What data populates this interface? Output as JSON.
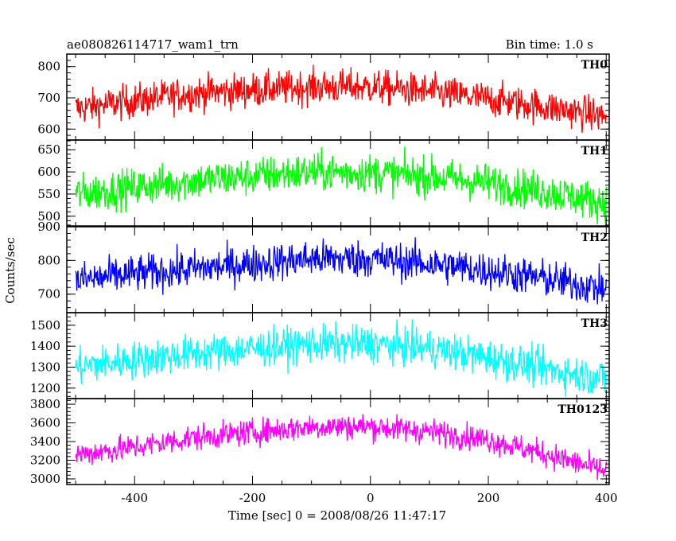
{
  "header": {
    "title": "ae080826114717_wam1_trn",
    "bin_time": "Bin time: 1.0 s"
  },
  "chart_data": {
    "type": "line",
    "xlabel": "Time [sec] 0 = 2008/08/26 11:47:17",
    "ylabel": "Counts/sec",
    "xlim": [
      -515,
      405
    ],
    "x_ticks": [
      -400,
      -200,
      0,
      200,
      400
    ],
    "x_step": 1,
    "panels": [
      {
        "name": "TH0",
        "color": "#ff0000",
        "ylim": [
          565,
          840
        ],
        "y_ticks": [
          600,
          700,
          800
        ],
        "x_range": [
          -500,
          400
        ],
        "trend": [
          [
            -500,
            665
          ],
          [
            -400,
            690
          ],
          [
            -300,
            715
          ],
          [
            -100,
            735
          ],
          [
            0,
            735
          ],
          [
            100,
            720
          ],
          [
            200,
            695
          ],
          [
            300,
            670
          ],
          [
            400,
            640
          ]
        ],
        "noise": 28
      },
      {
        "name": "TH1",
        "color": "#00ff00",
        "ylim": [
          478,
          672
        ],
        "y_ticks": [
          500,
          550,
          600,
          650
        ],
        "x_range": [
          -500,
          400
        ],
        "trend": [
          [
            -500,
            550
          ],
          [
            -400,
            565
          ],
          [
            -300,
            580
          ],
          [
            -100,
            600
          ],
          [
            0,
            598
          ],
          [
            100,
            590
          ],
          [
            200,
            575
          ],
          [
            300,
            555
          ],
          [
            400,
            530
          ]
        ],
        "noise": 22
      },
      {
        "name": "TH2",
        "color": "#0000ff",
        "ylim": [
          645,
          900
        ],
        "y_ticks": [
          700,
          800,
          900
        ],
        "x_range": [
          -500,
          400
        ],
        "trend": [
          [
            -500,
            740
          ],
          [
            -400,
            760
          ],
          [
            -300,
            775
          ],
          [
            -100,
            805
          ],
          [
            0,
            805
          ],
          [
            100,
            790
          ],
          [
            200,
            770
          ],
          [
            300,
            745
          ],
          [
            400,
            715
          ]
        ],
        "noise": 28
      },
      {
        "name": "TH3",
        "color": "#00ffff",
        "ylim": [
          1150,
          1560
        ],
        "y_ticks": [
          1200,
          1300,
          1400,
          1500
        ],
        "x_range": [
          -500,
          400
        ],
        "trend": [
          [
            -500,
            1300
          ],
          [
            -400,
            1335
          ],
          [
            -300,
            1365
          ],
          [
            -100,
            1410
          ],
          [
            0,
            1410
          ],
          [
            100,
            1390
          ],
          [
            200,
            1345
          ],
          [
            300,
            1290
          ],
          [
            400,
            1245
          ]
        ],
        "noise": 45
      },
      {
        "name": "TH0123",
        "color": "#ff00ff",
        "ylim": [
          2940,
          3860
        ],
        "y_ticks": [
          3000,
          3200,
          3400,
          3600,
          3800
        ],
        "x_range": [
          -500,
          400
        ],
        "trend": [
          [
            -500,
            3260
          ],
          [
            -400,
            3340
          ],
          [
            -300,
            3440
          ],
          [
            -100,
            3560
          ],
          [
            0,
            3560
          ],
          [
            100,
            3510
          ],
          [
            200,
            3420
          ],
          [
            300,
            3260
          ],
          [
            400,
            3080
          ]
        ],
        "noise": 70
      }
    ]
  }
}
